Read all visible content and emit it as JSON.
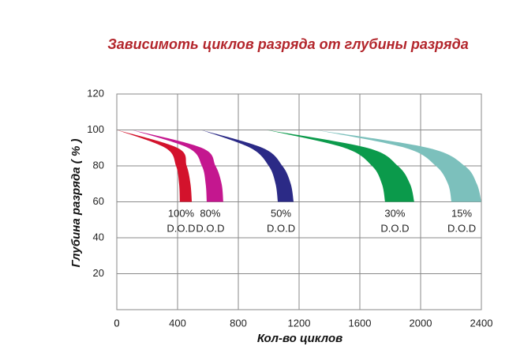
{
  "chart_data": {
    "type": "band",
    "title": "Зависимоть циклов разряда от глубины разряда",
    "xlabel": "Кол-во циклов",
    "ylabel": "Глубина разряда ( % )",
    "xlim": [
      0,
      2400
    ],
    "xticks": [
      0,
      400,
      800,
      1200,
      1600,
      2000,
      2400
    ],
    "ylim": [
      0,
      120
    ],
    "yticks": [
      20,
      40,
      60,
      80,
      100,
      120
    ],
    "grid": true,
    "band_label": "D.O.D",
    "series": [
      {
        "name": "100%",
        "color": "#d3122c",
        "y": [
          100,
          90,
          80,
          70,
          60
        ],
        "x_inner": [
          0,
          320,
          390,
          410,
          415
        ],
        "x_outer": [
          0,
          400,
          460,
          485,
          494
        ]
      },
      {
        "name": "80%",
        "color": "#c4178f",
        "y": [
          100,
          90,
          80,
          70,
          60
        ],
        "x_inner": [
          100,
          470,
          560,
          585,
          592
        ],
        "x_outer": [
          100,
          560,
          650,
          690,
          701
        ]
      },
      {
        "name": "50%",
        "color": "#2b2a86",
        "y": [
          100,
          90,
          80,
          70,
          60
        ],
        "x_inner": [
          556,
          880,
          1000,
          1045,
          1060
        ],
        "x_outer": [
          556,
          960,
          1090,
          1145,
          1164
        ]
      },
      {
        "name": "30%",
        "color": "#0b9a4b",
        "y": [
          100,
          90,
          80,
          70,
          60
        ],
        "x_inner": [
          987,
          1500,
          1680,
          1745,
          1766
        ],
        "x_outer": [
          987,
          1650,
          1850,
          1930,
          1958
        ]
      },
      {
        "name": "15%",
        "color": "#7cc0bc",
        "y": [
          100,
          90,
          80,
          70,
          60
        ],
        "x_inner": [
          1309,
          1900,
          2100,
          2180,
          2203
        ],
        "x_outer": [
          1309,
          2050,
          2290,
          2370,
          2400
        ]
      }
    ]
  }
}
